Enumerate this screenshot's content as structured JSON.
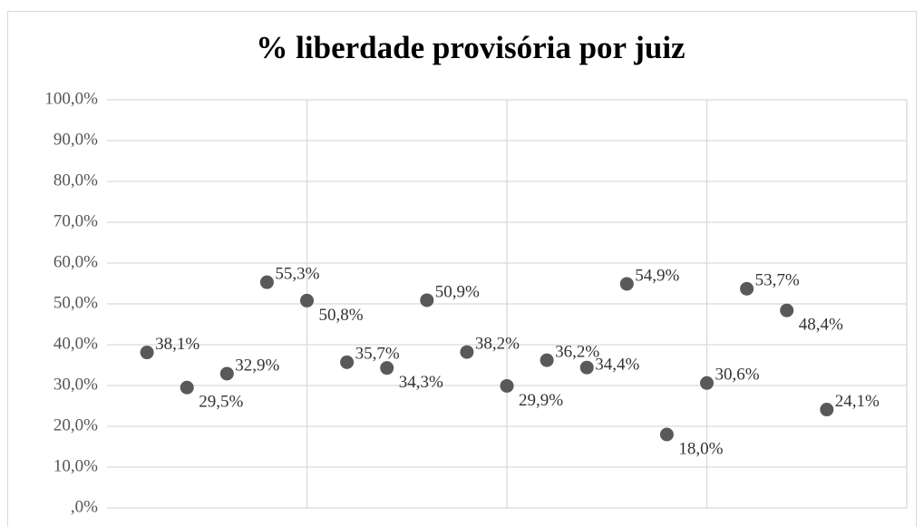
{
  "chart_data": {
    "type": "scatter",
    "title": "% liberdade provisória por juiz",
    "x": [
      1,
      2,
      3,
      4,
      5,
      6,
      7,
      8,
      9,
      10,
      11,
      12,
      13,
      14,
      15,
      16,
      17,
      18
    ],
    "values": [
      38.1,
      29.5,
      32.9,
      55.3,
      50.8,
      35.7,
      34.3,
      50.9,
      38.2,
      29.9,
      36.2,
      34.4,
      54.9,
      18.0,
      30.6,
      53.7,
      48.4,
      24.1
    ],
    "value_labels": [
      "38,1%",
      "29,5%",
      "32,9%",
      "55,3%",
      "50,8%",
      "35,7%",
      "34,3%",
      "50,9%",
      "38,2%",
      "29,9%",
      "36,2%",
      "34,4%",
      "54,9%",
      "18,0%",
      "30,6%",
      "53,7%",
      "48,4%",
      "24,1%"
    ],
    "color": "#595959",
    "xlim": [
      0,
      20
    ],
    "xticks": [
      0,
      5,
      10,
      15,
      20
    ],
    "ylim": [
      0,
      100
    ],
    "yticks": [
      {
        "value": 0,
        "label": ",0%"
      },
      {
        "value": 10,
        "label": "10,0%"
      },
      {
        "value": 20,
        "label": "20,0%"
      },
      {
        "value": 30,
        "label": "30,0%"
      },
      {
        "value": 40,
        "label": "40,0%"
      },
      {
        "value": 50,
        "label": "50,0%"
      },
      {
        "value": 60,
        "label": "60,0%"
      },
      {
        "value": 70,
        "label": "70,0%"
      },
      {
        "value": 80,
        "label": "80,0%"
      },
      {
        "value": 90,
        "label": "90,0%"
      },
      {
        "value": 100,
        "label": "100,0%"
      }
    ],
    "grid": true
  }
}
